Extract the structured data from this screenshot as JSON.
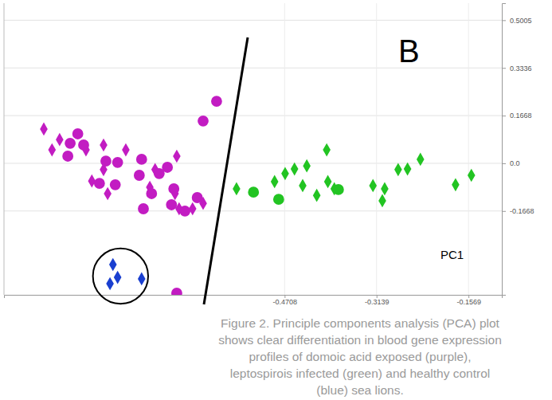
{
  "chart_data": {
    "type": "scatter",
    "title": "B",
    "x_label": "PC1",
    "caption": [
      "Figure 2. Principle components analysis (PCA) plot",
      "shows clear differentiation in blood gene expression",
      "profiles of domoic acid exposed (purple),",
      "leptospirois infected (green) and healthy control",
      "(blue) sea lions."
    ],
    "xlim": [
      -0.95,
      -0.1
    ],
    "xticks": [
      -0.4708,
      -0.3139,
      -0.1569
    ],
    "ylim": [
      -0.46,
      0.56
    ],
    "yticks": [
      0.5005,
      0.3336,
      0.1668,
      {
        "value": 0,
        "label": "0.0"
      },
      -0.1668
    ],
    "grid": true,
    "series": [
      {
        "color": "#c21cc2",
        "marker": "diamond",
        "x": [
          -0.882,
          -0.868,
          -0.855,
          -0.81,
          -0.78,
          -0.742,
          -0.655,
          -0.78,
          -0.692,
          -0.8,
          -0.773,
          -0.701,
          -0.658,
          -0.61,
          -0.651,
          -0.628
        ],
        "values": [
          0.12,
          0.047,
          0.083,
          0.047,
          0.064,
          0.047,
          0.025,
          -0.022,
          -0.022,
          -0.062,
          -0.106,
          -0.084,
          -0.106,
          -0.14,
          -0.159,
          -0.159
        ]
      },
      {
        "color": "#c21cc2",
        "marker": "circle",
        "x": [
          -0.824,
          -0.837,
          -0.814,
          -0.841,
          -0.776,
          -0.756,
          -0.715,
          -0.671,
          -0.685,
          -0.719,
          -0.787,
          -0.76,
          -0.66,
          -0.698,
          -0.712,
          -0.664,
          -0.641,
          -0.62,
          -0.61,
          -0.587,
          -0.655
        ],
        "values": [
          0.103,
          0.07,
          0.064,
          0.025,
          0.008,
          0.003,
          0.014,
          -0.014,
          -0.036,
          -0.042,
          -0.07,
          -0.075,
          -0.089,
          -0.106,
          -0.159,
          -0.145,
          -0.167,
          -0.12,
          0.148,
          0.217,
          -0.454
        ]
      },
      {
        "color": "#22c422",
        "marker": "diamond",
        "x": [
          -0.553,
          -0.488,
          -0.47,
          -0.454,
          -0.433,
          -0.399,
          -0.44,
          -0.416,
          -0.397,
          -0.386,
          -0.32,
          -0.3,
          -0.304,
          -0.277,
          -0.239,
          -0.261,
          -0.179,
          -0.152
        ],
        "values": [
          -0.089,
          -0.064,
          -0.036,
          -0.02,
          -0.009,
          0.047,
          -0.078,
          -0.112,
          -0.064,
          -0.089,
          -0.078,
          -0.089,
          -0.131,
          -0.022,
          0.014,
          -0.02,
          -0.075,
          -0.042
        ]
      },
      {
        "color": "#22c422",
        "marker": "circle",
        "x": [
          -0.524,
          -0.481,
          -0.379
        ],
        "values": [
          -0.101,
          -0.126,
          -0.092
        ]
      },
      {
        "color": "#1a3fd0",
        "marker": "diamond",
        "x": [
          -0.764,
          -0.756,
          -0.715,
          -0.769
        ],
        "values": [
          -0.354,
          -0.399,
          -0.404,
          -0.421
        ]
      }
    ]
  }
}
